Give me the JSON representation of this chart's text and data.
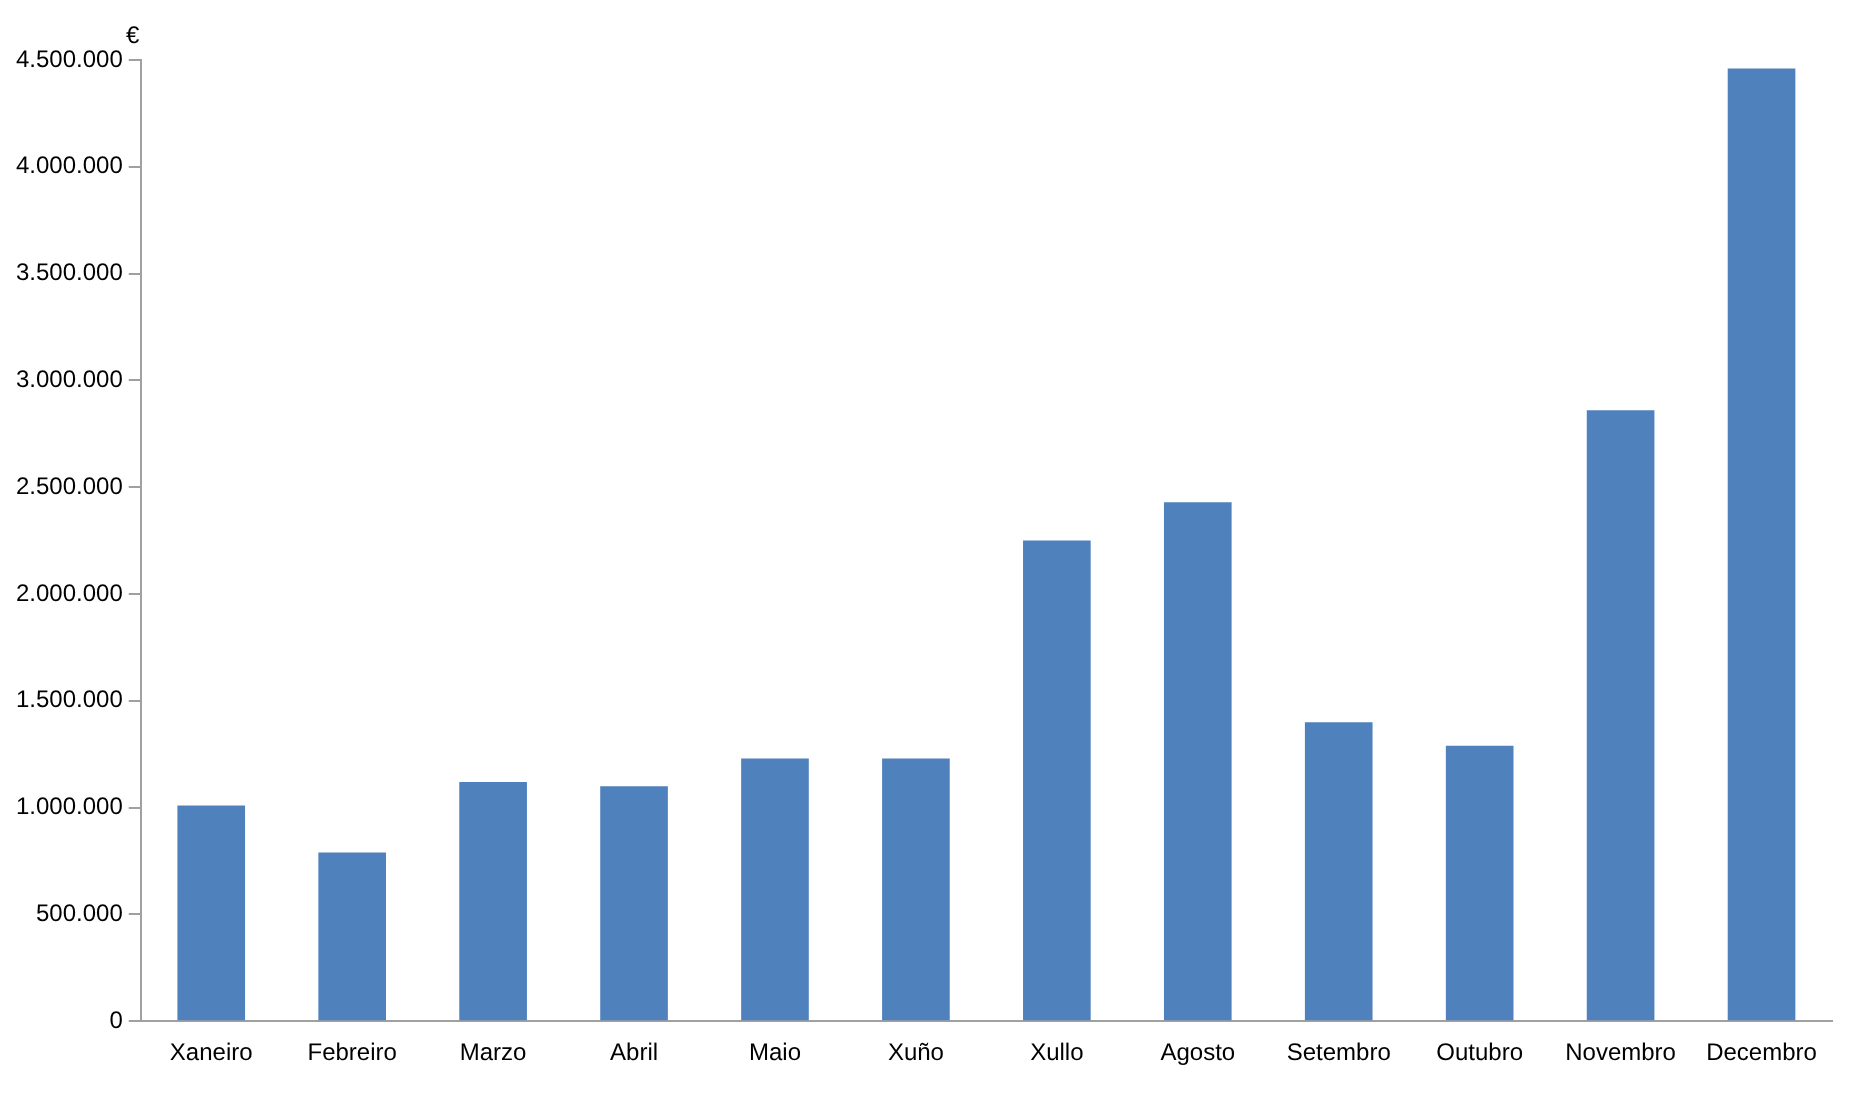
{
  "chart_data": {
    "type": "bar",
    "ylabel": "€",
    "categories": [
      "Xaneiro",
      "Febreiro",
      "Marzo",
      "Abril",
      "Maio",
      "Xuño",
      "Xullo",
      "Agosto",
      "Setembro",
      "Outubro",
      "Novembro",
      "Decembro"
    ],
    "values": [
      1010000,
      790000,
      1120000,
      1100000,
      1230000,
      1230000,
      2250000,
      2430000,
      1400000,
      1290000,
      2860000,
      4460000
    ],
    "color": "#4f81bd",
    "ylim": [
      0,
      4500000
    ],
    "yticks": [
      0,
      {
        "value": 500000,
        "label": "500.000"
      },
      {
        "value": 1000000,
        "label": "1.000.000"
      },
      {
        "value": 1500000,
        "label": "1.500.000"
      },
      {
        "value": 2000000,
        "label": "2.000.000"
      },
      {
        "value": 2500000,
        "label": "2.500.000"
      },
      {
        "value": 3000000,
        "label": "3.000.000"
      },
      {
        "value": 3500000,
        "label": "3.500.000"
      },
      {
        "value": 4000000,
        "label": "4.000.000"
      },
      {
        "value": 4500000,
        "label": "4.500.000"
      }
    ],
    "grid": false,
    "legend": false
  }
}
